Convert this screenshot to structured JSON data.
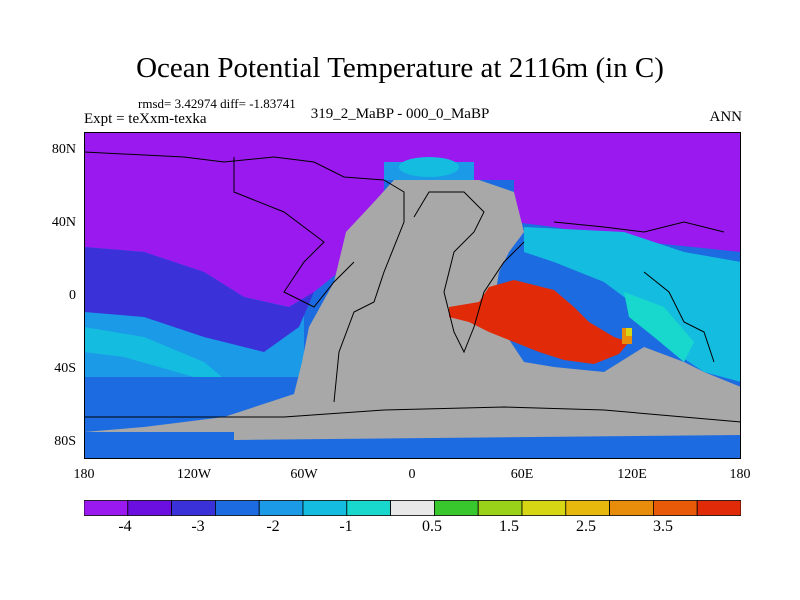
{
  "title": "Ocean Potential Temperature at 2116m (in C)",
  "stats": "rmsd= 3.42974 diff= -1.83741",
  "expt": "Expt = teXxm-texka",
  "diff_label": "319_2_MaBP - 000_0_MaBP",
  "season": "ANN",
  "y_ticks": [
    "80N",
    "40N",
    "0",
    "40S",
    "80S"
  ],
  "x_ticks": [
    "180",
    "120W",
    "60W",
    "0",
    "60E",
    "120E",
    "180"
  ],
  "colorbar": {
    "colors": [
      "#9a19ee",
      "#6b0fe0",
      "#3a32d8",
      "#1d6be0",
      "#1b9ae8",
      "#14bde0",
      "#18d7cd",
      "#e8e8e8",
      "#38c82e",
      "#9ad21a",
      "#d6d614",
      "#e6b80e",
      "#e88c0c",
      "#e85a08",
      "#e02a08"
    ],
    "labels": [
      "-4",
      "-3",
      "-2",
      "-1",
      "0.5",
      "1.5",
      "2.5",
      "3.5"
    ]
  },
  "palette": {
    "land": "#a8a8a8",
    "vpurple": "#9a19ee",
    "purple": "#6b0fe0",
    "indigo": "#3a32d8",
    "blue": "#1d6be0",
    "lblue": "#1b9ae8",
    "cyan": "#14bde0",
    "teal": "#18d7cd",
    "red": "#e02a08",
    "orange": "#e85a08",
    "yellow": "#d6d614"
  }
}
